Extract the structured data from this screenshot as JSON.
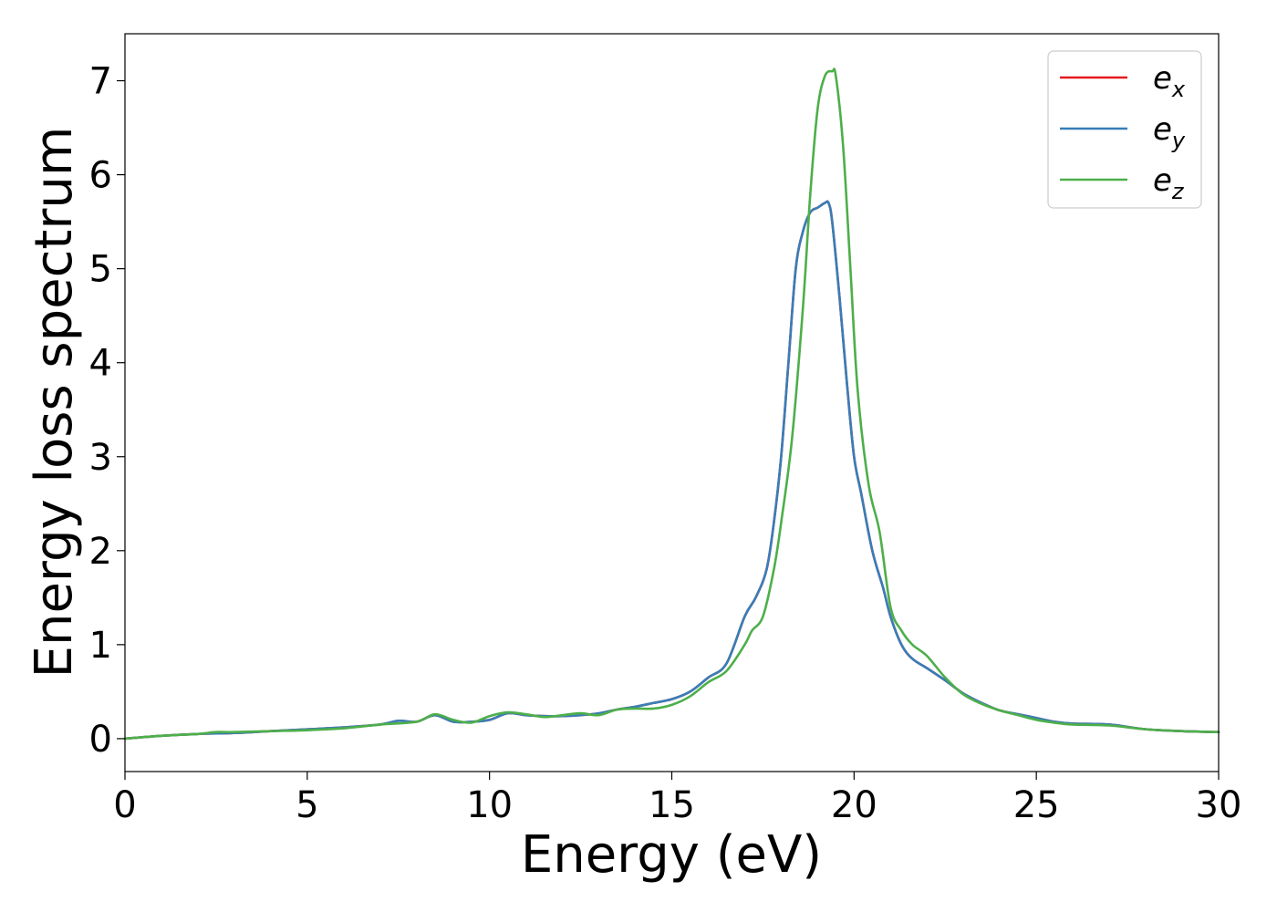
{
  "chart_data": {
    "type": "line",
    "title": "",
    "xlabel": "Energy (eV)",
    "ylabel": "Energy loss spectrum",
    "xlim": [
      0,
      30
    ],
    "ylim": [
      -0.35,
      7.5
    ],
    "xticks": [
      0,
      5,
      10,
      15,
      20,
      25,
      30
    ],
    "yticks": [
      0,
      1,
      2,
      3,
      4,
      5,
      6,
      7
    ],
    "grid": false,
    "legend": "top-right",
    "series": [
      {
        "name": "e_x",
        "label_main": "e",
        "label_sub": "x",
        "color": "#e41a1c",
        "x": [
          0,
          1,
          2,
          3,
          4,
          5,
          6,
          7,
          7.5,
          8,
          8.5,
          9,
          9.5,
          10,
          10.5,
          11,
          11.5,
          12,
          12.5,
          13,
          13.5,
          14,
          14.5,
          15,
          15.5,
          16,
          16.5,
          17,
          17.3,
          17.6,
          17.8,
          18,
          18.2,
          18.4,
          18.6,
          18.8,
          19,
          19.2,
          19.3,
          19.4,
          19.6,
          19.8,
          20,
          20.2,
          20.5,
          20.8,
          21,
          21.3,
          21.6,
          22,
          22.5,
          23,
          23.5,
          24,
          24.5,
          25,
          25.5,
          26,
          27,
          28,
          29,
          30
        ],
        "y": [
          0,
          0.03,
          0.05,
          0.06,
          0.08,
          0.1,
          0.12,
          0.15,
          0.19,
          0.18,
          0.25,
          0.18,
          0.18,
          0.2,
          0.27,
          0.25,
          0.24,
          0.24,
          0.25,
          0.27,
          0.31,
          0.34,
          0.38,
          0.42,
          0.5,
          0.65,
          0.8,
          1.3,
          1.5,
          1.8,
          2.3,
          3.0,
          4.0,
          5.0,
          5.4,
          5.6,
          5.65,
          5.7,
          5.7,
          5.5,
          4.7,
          3.8,
          3.0,
          2.6,
          2.0,
          1.6,
          1.3,
          1.0,
          0.85,
          0.75,
          0.62,
          0.48,
          0.38,
          0.3,
          0.26,
          0.22,
          0.18,
          0.16,
          0.15,
          0.1,
          0.08,
          0.07
        ]
      },
      {
        "name": "e_y",
        "label_main": "e",
        "label_sub": "y",
        "color": "#377eb8",
        "x": [
          0,
          1,
          2,
          3,
          4,
          5,
          6,
          7,
          7.5,
          8,
          8.5,
          9,
          9.5,
          10,
          10.5,
          11,
          11.5,
          12,
          12.5,
          13,
          13.5,
          14,
          14.5,
          15,
          15.5,
          16,
          16.5,
          17,
          17.3,
          17.6,
          17.8,
          18,
          18.2,
          18.4,
          18.6,
          18.8,
          19,
          19.2,
          19.3,
          19.4,
          19.6,
          19.8,
          20,
          20.2,
          20.5,
          20.8,
          21,
          21.3,
          21.6,
          22,
          22.5,
          23,
          23.5,
          24,
          24.5,
          25,
          25.5,
          26,
          27,
          28,
          29,
          30
        ],
        "y": [
          0,
          0.03,
          0.05,
          0.06,
          0.08,
          0.1,
          0.12,
          0.15,
          0.19,
          0.18,
          0.25,
          0.18,
          0.18,
          0.2,
          0.27,
          0.25,
          0.24,
          0.24,
          0.25,
          0.27,
          0.31,
          0.34,
          0.38,
          0.42,
          0.5,
          0.65,
          0.8,
          1.3,
          1.5,
          1.8,
          2.3,
          3.0,
          4.0,
          5.0,
          5.4,
          5.6,
          5.65,
          5.7,
          5.7,
          5.5,
          4.7,
          3.8,
          3.0,
          2.6,
          2.0,
          1.6,
          1.3,
          1.0,
          0.85,
          0.75,
          0.62,
          0.48,
          0.38,
          0.3,
          0.26,
          0.22,
          0.18,
          0.16,
          0.15,
          0.1,
          0.08,
          0.07
        ]
      },
      {
        "name": "e_z",
        "label_main": "e",
        "label_sub": "z",
        "color": "#4daf4a",
        "x": [
          0,
          1,
          2,
          2.5,
          3,
          4,
          5,
          6,
          7,
          8,
          8.5,
          9,
          9.5,
          10,
          10.5,
          11,
          11.5,
          12,
          12.5,
          13,
          13.5,
          14,
          14.5,
          15,
          15.5,
          16,
          16.5,
          17,
          17.2,
          17.5,
          17.8,
          18,
          18.3,
          18.6,
          18.8,
          19,
          19.2,
          19.4,
          19.5,
          19.7,
          19.9,
          20.1,
          20.4,
          20.7,
          21,
          21.3,
          21.6,
          22,
          22.5,
          23,
          23.5,
          24,
          24.5,
          25,
          25.5,
          26,
          27,
          28,
          29,
          30
        ],
        "y": [
          0,
          0.03,
          0.05,
          0.07,
          0.07,
          0.08,
          0.09,
          0.11,
          0.15,
          0.18,
          0.26,
          0.2,
          0.17,
          0.24,
          0.28,
          0.26,
          0.23,
          0.25,
          0.27,
          0.25,
          0.31,
          0.32,
          0.32,
          0.36,
          0.45,
          0.6,
          0.72,
          1.0,
          1.15,
          1.3,
          1.8,
          2.3,
          3.2,
          4.6,
          5.8,
          6.7,
          7.05,
          7.1,
          7.05,
          6.3,
          5.0,
          3.7,
          2.7,
          2.2,
          1.4,
          1.15,
          1.0,
          0.88,
          0.65,
          0.47,
          0.37,
          0.3,
          0.25,
          0.2,
          0.17,
          0.15,
          0.14,
          0.1,
          0.08,
          0.07
        ]
      }
    ]
  }
}
